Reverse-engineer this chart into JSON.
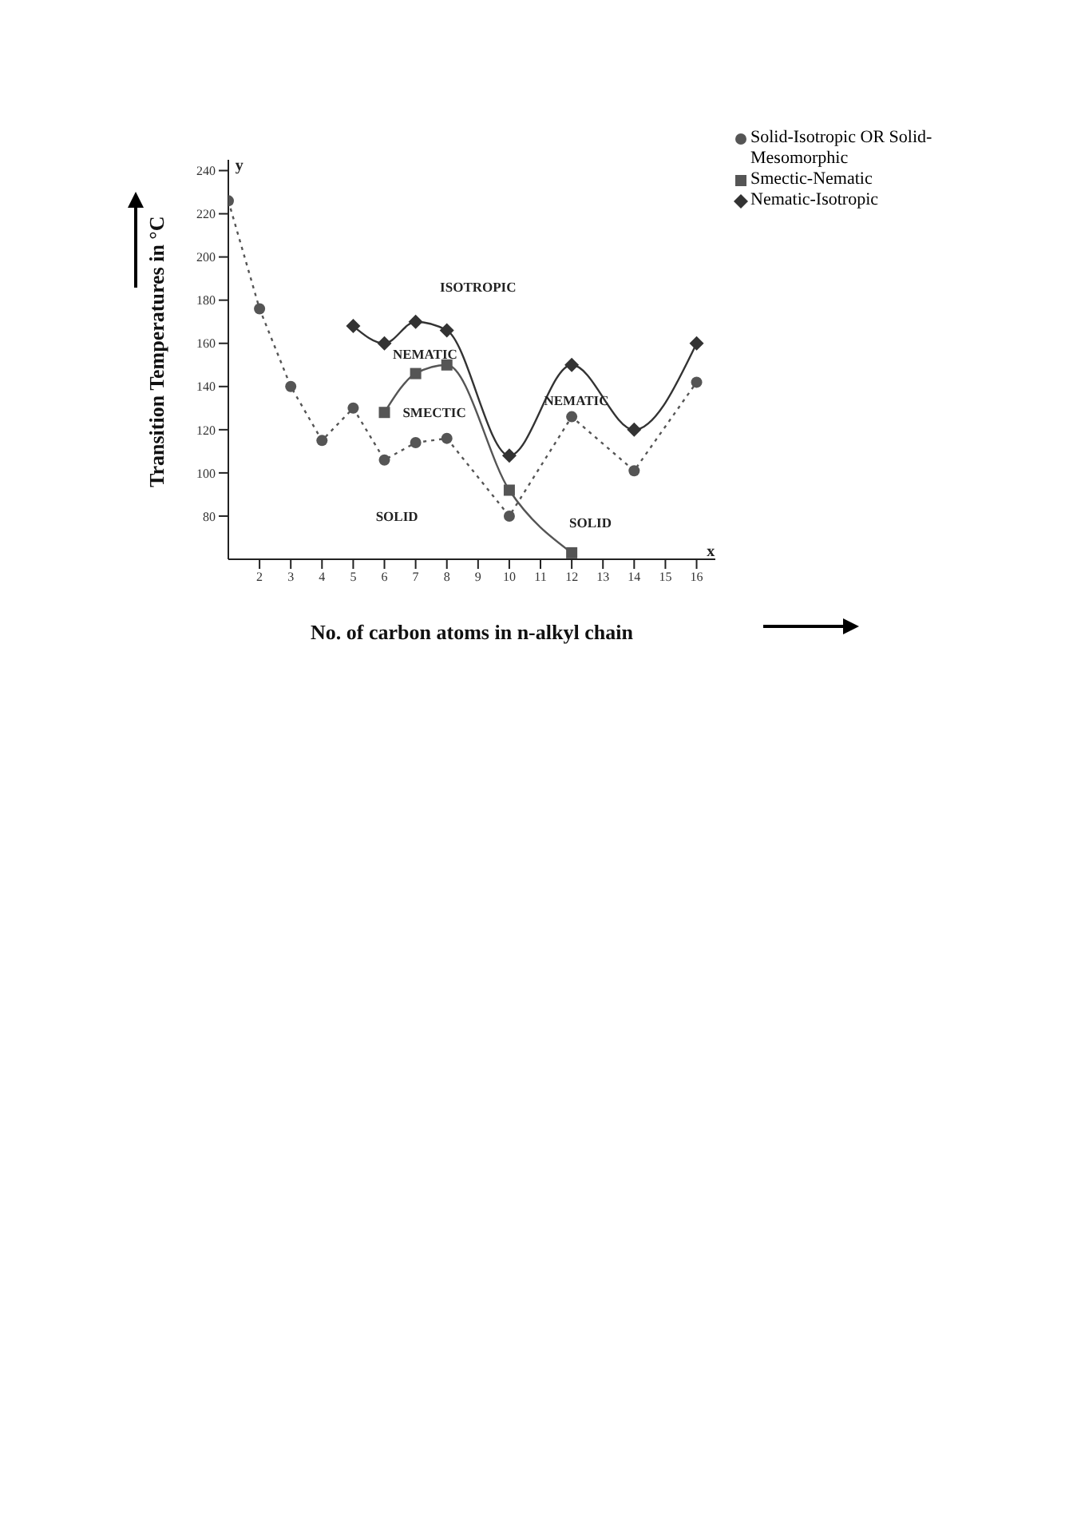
{
  "chart_data": {
    "type": "line",
    "xlabel": "No. of carbon atoms in n-alkyl chain",
    "ylabel": "Transition Temperatures in °C",
    "xlim": [
      1,
      16.6
    ],
    "xticks": [
      2,
      3,
      4,
      5,
      6,
      7,
      8,
      9,
      10,
      11,
      12,
      13,
      14,
      15,
      16
    ],
    "ylim": [
      60,
      245
    ],
    "yticks": [
      80,
      100,
      120,
      140,
      160,
      180,
      200,
      220,
      240
    ],
    "series": [
      {
        "name": "Solid-Isotropic OR Solid-Mesomorphic",
        "color": "#555555",
        "marker": "circle",
        "line_style": "dotted",
        "x": [
          1,
          2,
          3,
          4,
          5,
          6,
          7,
          8,
          10,
          12,
          14,
          16
        ],
        "values": [
          226,
          176,
          140,
          115,
          130,
          106,
          114,
          116,
          80,
          126,
          101,
          142
        ]
      },
      {
        "name": "Smectic-Nematic",
        "color": "#555555",
        "marker": "square",
        "line_style": "solid",
        "x": [
          6,
          7,
          8,
          10,
          12
        ],
        "values": [
          128,
          146,
          150,
          92,
          63
        ]
      },
      {
        "name": "Nematic-Isotropic",
        "color": "#333333",
        "marker": "diamond",
        "line_style": "solid",
        "x": [
          5,
          6,
          7,
          8,
          10,
          12,
          14,
          16
        ],
        "values": [
          168,
          160,
          170,
          166,
          108,
          150,
          120,
          160
        ]
      }
    ],
    "annotations": [
      "ISOTROPIC",
      "NEMATIC",
      "SMECTIC",
      "SOLID",
      "NEMATIC",
      "SOLID",
      "y",
      "x"
    ],
    "legend": "top right"
  }
}
